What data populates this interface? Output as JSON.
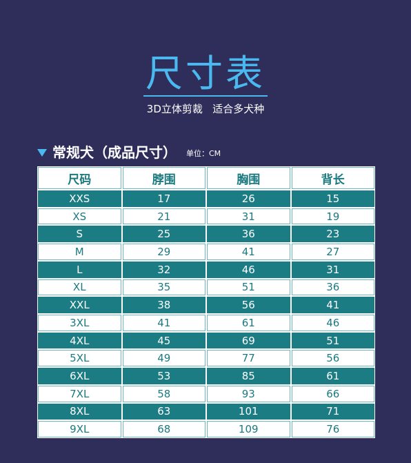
{
  "header": {
    "title": "尺寸表",
    "subtitle": "3D立体剪裁   适合多犬种"
  },
  "section": {
    "title": "常规犬（成品尺寸）",
    "unit": "单位：CM"
  },
  "colors": {
    "background": "#2f2e5a",
    "accent": "#4ab9ef",
    "teal": "#1b7c84"
  },
  "table": {
    "columns": [
      "尺码",
      "脖围",
      "胸围",
      "背长"
    ],
    "rows": [
      [
        "XXS",
        "17",
        "26",
        "15"
      ],
      [
        "XS",
        "21",
        "31",
        "19"
      ],
      [
        "S",
        "25",
        "36",
        "23"
      ],
      [
        "M",
        "29",
        "41",
        "27"
      ],
      [
        "L",
        "32",
        "46",
        "31"
      ],
      [
        "XL",
        "35",
        "51",
        "36"
      ],
      [
        "XXL",
        "38",
        "56",
        "41"
      ],
      [
        "3XL",
        "41",
        "61",
        "46"
      ],
      [
        "4XL",
        "45",
        "69",
        "51"
      ],
      [
        "5XL",
        "49",
        "77",
        "56"
      ],
      [
        "6XL",
        "53",
        "85",
        "61"
      ],
      [
        "7XL",
        "58",
        "93",
        "66"
      ],
      [
        "8XL",
        "63",
        "101",
        "71"
      ],
      [
        "9XL",
        "68",
        "109",
        "76"
      ]
    ]
  }
}
